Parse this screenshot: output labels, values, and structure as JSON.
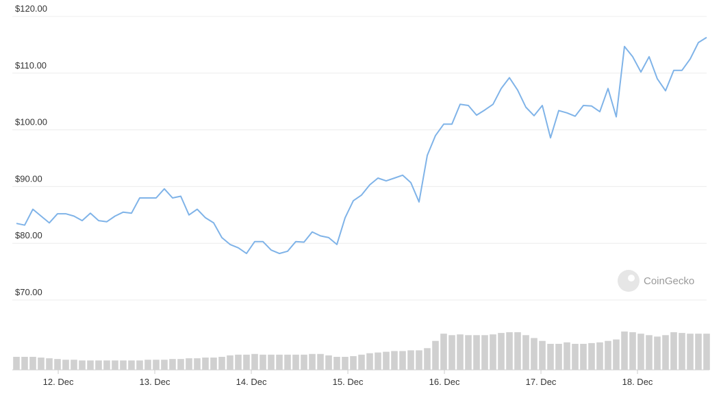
{
  "chart_data": [
    {
      "type": "line",
      "color": "#7fb3e8",
      "values": [
        83.5,
        83.2,
        86,
        84.8,
        83.6,
        85.2,
        85.2,
        84.8,
        84,
        85.3,
        84,
        83.8,
        84.8,
        85.5,
        85.3,
        88,
        88,
        88,
        89.6,
        88,
        88.3,
        85,
        86,
        84.5,
        83.6,
        81,
        79.8,
        79.2,
        78.2,
        80.3,
        80.3,
        78.8,
        78.2,
        78.6,
        80.3,
        80.2,
        82,
        81.3,
        81,
        79.8,
        84.5,
        87.5,
        88.5,
        90.3,
        91.5,
        91,
        91.5,
        92,
        90.7,
        87.3,
        95.5,
        99,
        101,
        101,
        104.5,
        104.3,
        102.6,
        103.5,
        104.5,
        107.3,
        109.2,
        107,
        104,
        102.5,
        104.3,
        98.6,
        103.4,
        103,
        102.4,
        104.3,
        104.2,
        103.2,
        107.3,
        102.3,
        114.7,
        112.9,
        110.2,
        112.9,
        109,
        106.9,
        110.5,
        110.5,
        112.5,
        115.4,
        116.3
      ],
      "xlim": [
        11.567,
        18.716
      ],
      "xticks": [
        {
          "value": 12,
          "label": "12. Dec"
        },
        {
          "value": 13,
          "label": "13. Dec"
        },
        {
          "value": 14,
          "label": "14. Dec"
        },
        {
          "value": 15,
          "label": "15. Dec"
        },
        {
          "value": 16,
          "label": "16. Dec"
        },
        {
          "value": 17,
          "label": "17. Dec"
        },
        {
          "value": 18,
          "label": "18. Dec"
        }
      ],
      "ylim": [
        70,
        120
      ],
      "yticks": [
        {
          "value": 70,
          "label": "$70.00"
        },
        {
          "value": 80,
          "label": "$80.00"
        },
        {
          "value": 90,
          "label": "$90.00"
        },
        {
          "value": 100,
          "label": "$100.00"
        },
        {
          "value": 110,
          "label": "$110.00"
        },
        {
          "value": 120,
          "label": "$120.00"
        }
      ],
      "grid": true
    },
    {
      "type": "bar",
      "color": "#d0d0d0",
      "values": [
        18,
        18,
        18,
        17,
        16,
        15,
        14,
        14,
        13,
        13,
        13,
        13,
        13,
        13,
        13,
        13,
        14,
        14,
        14,
        15,
        15,
        16,
        16,
        17,
        17,
        18,
        20,
        21,
        21,
        22,
        21,
        21,
        21,
        21,
        21,
        21,
        22,
        22,
        20,
        18,
        18,
        19,
        21,
        23,
        24,
        25,
        26,
        26,
        27,
        27,
        30,
        40,
        50,
        48,
        49,
        48,
        48,
        48,
        49,
        51,
        52,
        52,
        48,
        44,
        40,
        36,
        36,
        38,
        36,
        36,
        37,
        38,
        40,
        42,
        53,
        52,
        50,
        48,
        46,
        48,
        52,
        51,
        50,
        50,
        50
      ]
    }
  ],
  "watermark": "CoinGecko"
}
